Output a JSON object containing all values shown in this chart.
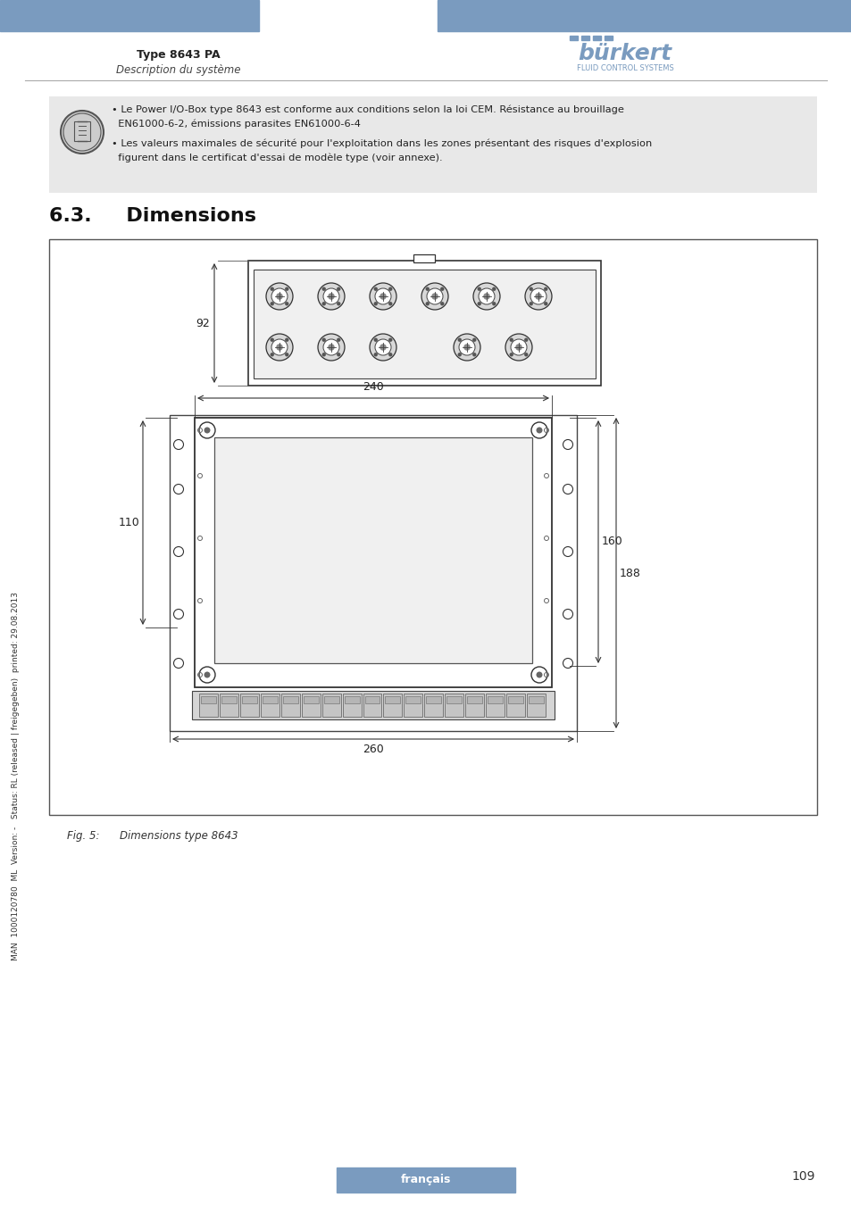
{
  "bg_color": "#ffffff",
  "header_bar_color": "#7a9bbf",
  "header_text_left": "Type 8643 PA",
  "header_subtext_left": "Description du système",
  "section_title": "6.3.     Dimensions",
  "info_box_bg": "#e8e8e8",
  "info_line1": "• Le Power I/O-Box type 8643 est conforme aux conditions selon la loi CEM. Résistance au brouillage",
  "info_line2": "  EN61000-6-2, émissions parasites EN61000-6-4",
  "info_line3": "• Les valeurs maximales de sécurité pour l'exploitation dans les zones présentant des risques d'explosion",
  "info_line4": "  figurent dans le certificat d'essai de modèle type (voir annexe).",
  "fig_caption": "Fig. 5:      Dimensions type 8643",
  "side_text": "MAN  1000120780  ML  Version: -   Status: RL (released | freigegeben)  printed: 29.08.2013",
  "footer_text": "français",
  "footer_page": "109",
  "dim_92": "92",
  "dim_240": "240",
  "dim_110": "110",
  "dim_160": "160",
  "dim_188": "188",
  "dim_260": "260"
}
